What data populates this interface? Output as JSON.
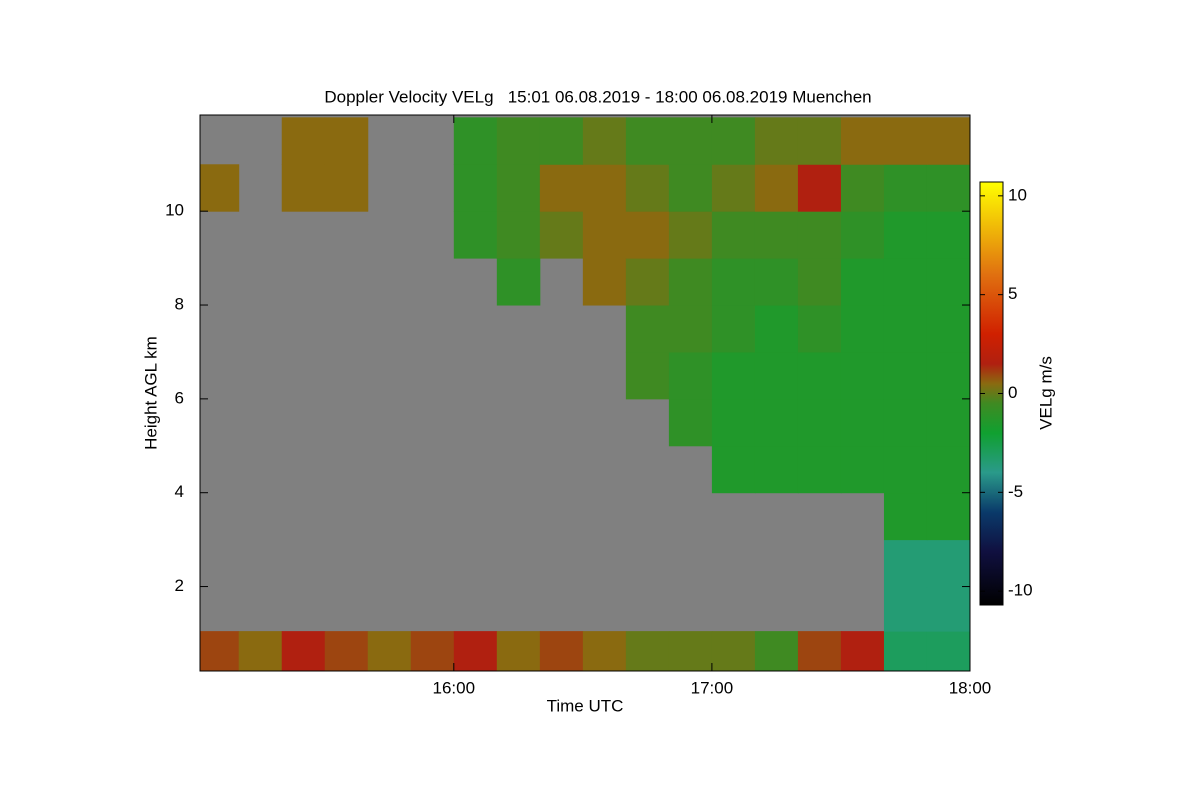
{
  "chart_data": {
    "type": "heatmap",
    "title": "Doppler Velocity VELg   15:01 06.08.2019 - 18:00 06.08.2019 Muenchen",
    "x_label": "Time UTC",
    "y_label": "Height AGL km",
    "x": [
      905,
      915,
      925,
      935,
      945,
      955,
      965,
      975,
      985,
      995,
      1005,
      1015,
      1025,
      1035,
      1045,
      1055,
      1065,
      1075
    ],
    "y": [
      0.6,
      1.5,
      2.5,
      3.5,
      4.5,
      5.5,
      6.5,
      7.5,
      8.5,
      9.5,
      10.5,
      11.5
    ],
    "values": [
      [
        1,
        0.5,
        1.5,
        1,
        0.5,
        1,
        1.5,
        0.5,
        1,
        0.5,
        0,
        0,
        0,
        -0.5,
        1,
        1.5,
        -3,
        -3
      ],
      [
        null,
        null,
        null,
        null,
        null,
        null,
        null,
        null,
        null,
        null,
        null,
        null,
        null,
        null,
        null,
        null,
        -3.5,
        -3.5
      ],
      [
        null,
        null,
        null,
        null,
        null,
        null,
        null,
        null,
        null,
        null,
        null,
        null,
        null,
        null,
        null,
        null,
        -3.5,
        -3.5
      ],
      [
        null,
        null,
        null,
        null,
        null,
        null,
        null,
        null,
        null,
        null,
        null,
        null,
        null,
        null,
        null,
        null,
        -1.5,
        -1.5
      ],
      [
        null,
        null,
        null,
        null,
        null,
        null,
        null,
        null,
        null,
        null,
        null,
        null,
        -1.5,
        -1.5,
        -1.5,
        -1.5,
        -1.5,
        -1.5
      ],
      [
        null,
        null,
        null,
        null,
        null,
        null,
        null,
        null,
        null,
        null,
        null,
        -1,
        -1.5,
        -1.5,
        -1.5,
        -1.5,
        -1.5,
        -1.5
      ],
      [
        null,
        null,
        null,
        null,
        null,
        null,
        null,
        null,
        null,
        null,
        -0.5,
        -1,
        -1.5,
        -1.5,
        -1.5,
        -1.5,
        -1.5,
        -1.5
      ],
      [
        null,
        null,
        null,
        null,
        null,
        null,
        null,
        null,
        null,
        null,
        -0.5,
        -0.5,
        -1,
        -1.5,
        -1,
        -1.5,
        -1.5,
        -1.5
      ],
      [
        null,
        null,
        null,
        null,
        null,
        null,
        null,
        -1,
        null,
        0.5,
        0,
        -0.5,
        -1,
        -1,
        -0.5,
        -1.5,
        -1.5,
        -1.5
      ],
      [
        null,
        null,
        null,
        null,
        null,
        null,
        -1,
        -0.5,
        0,
        0.5,
        0.5,
        0,
        -0.5,
        -0.5,
        -0.5,
        -1,
        -1.5,
        -1.5
      ],
      [
        0.5,
        null,
        0.5,
        0.5,
        null,
        null,
        -1,
        -0.5,
        0.5,
        0.5,
        0,
        -0.5,
        0,
        0.5,
        1.5,
        -0.5,
        -1,
        -1
      ],
      [
        null,
        null,
        0.5,
        0.5,
        null,
        null,
        -1,
        -0.5,
        -0.5,
        0,
        -0.5,
        -0.5,
        -0.5,
        0,
        0,
        0.5,
        0.5,
        0.5
      ]
    ],
    "xlim": [
      901,
      1080
    ],
    "xticks": [
      {
        "value": 960,
        "label": "16:00"
      },
      {
        "value": 1020,
        "label": "17:00"
      },
      {
        "value": 1080,
        "label": "18:00"
      }
    ],
    "ylim": [
      0.2,
      12.05
    ],
    "yticks": [
      2,
      4,
      6,
      8,
      10
    ],
    "missing_color": "#808080",
    "colorbar": {
      "label": "VELg m/s",
      "zlim": [
        -10.7,
        10.7
      ],
      "ticks": [
        10,
        5,
        0,
        -5,
        -10
      ],
      "colormap": [
        {
          "value": -10.7,
          "color": "#000000"
        },
        {
          "value": -8,
          "color": "#101040"
        },
        {
          "value": -6,
          "color": "#0a3a6a"
        },
        {
          "value": -4,
          "color": "#2a9a8a"
        },
        {
          "value": -2,
          "color": "#10a030"
        },
        {
          "value": -0.5,
          "color": "#3f8a22"
        },
        {
          "value": 0.5,
          "color": "#8a6a10"
        },
        {
          "value": 1.5,
          "color": "#b02010"
        },
        {
          "value": 3,
          "color": "#d02000"
        },
        {
          "value": 6,
          "color": "#e07010"
        },
        {
          "value": 10.7,
          "color": "#ffff00"
        }
      ]
    }
  }
}
